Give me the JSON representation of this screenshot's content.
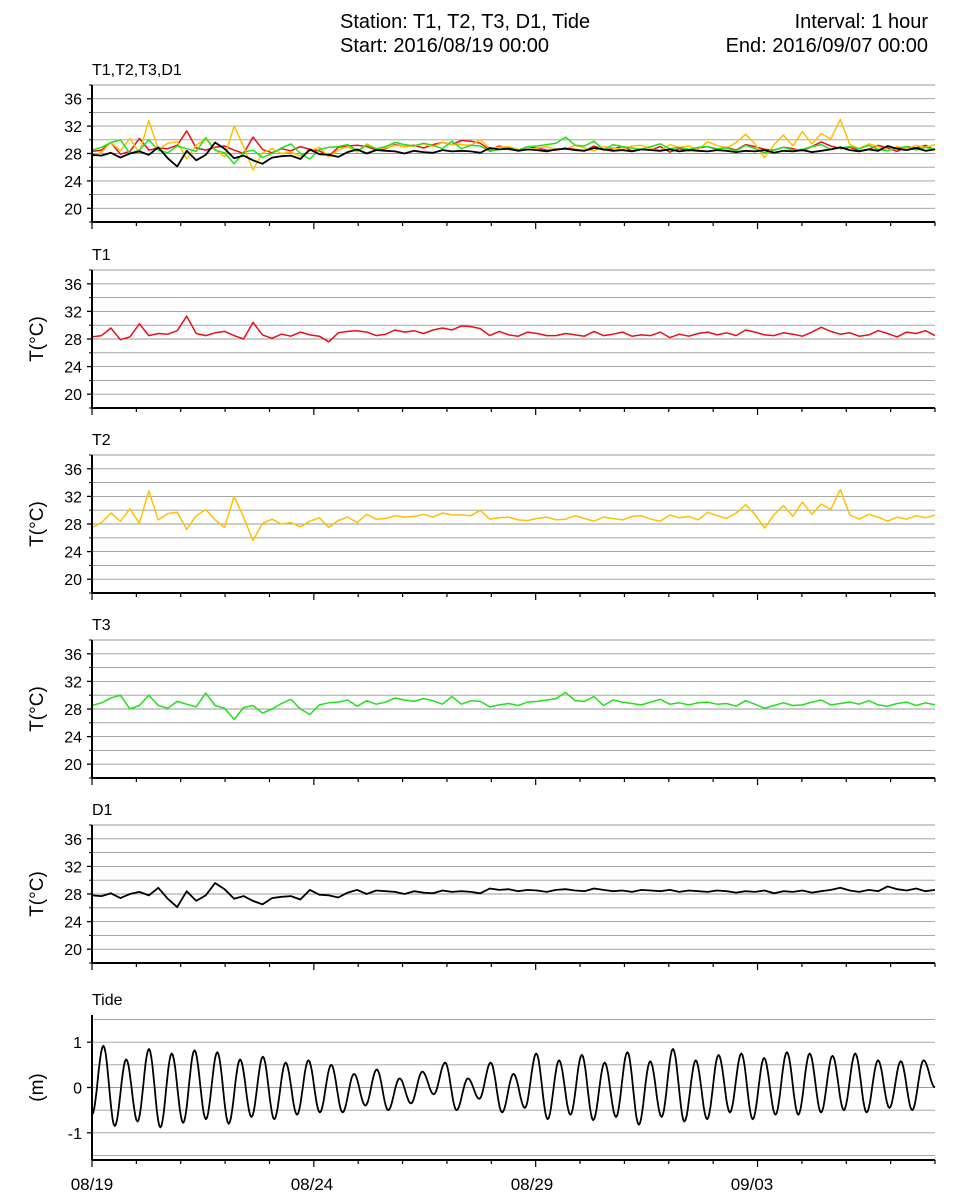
{
  "header": {
    "station": "Station: T1, T2, T3, D1, Tide",
    "start": "Start: 2016/08/19 00:00",
    "interval": "Interval: 1 hour",
    "end": "End: 2016/09/07 00:00"
  },
  "colors": {
    "T1": "#e8101a",
    "T2": "#ffc000",
    "T3": "#22e01c",
    "D1": "#000000",
    "Tide": "#000000",
    "grid": "#9a9a9a"
  },
  "chart_data": {
    "type": "line",
    "x_ticks": [
      "08/19",
      "08/24",
      "08/29",
      "09/03"
    ],
    "xlim": [
      "2016/08/19 00:00",
      "2016/09/07 00:00"
    ],
    "grid": true,
    "panels": [
      {
        "title": "T1,T2,T3,D1",
        "ylabel": "",
        "ylim": [
          18,
          38
        ],
        "yticks": [
          20,
          24,
          28,
          32,
          36
        ],
        "series": [
          {
            "name": "T1",
            "values": [
              28.3,
              28.5,
              29.6,
              27.9,
              28.3,
              30.2,
              28.5,
              28.8,
              28.7,
              29.2,
              31.3,
              28.8,
              28.5,
              28.9,
              29.1,
              28.5,
              28.0,
              30.4,
              28.6,
              28.1,
              28.7,
              28.4,
              29.0,
              28.6,
              28.4,
              27.6,
              28.9,
              29.1,
              29.2,
              29.0,
              28.5,
              28.7,
              29.3,
              29.0,
              29.2,
              28.8,
              29.3,
              29.6,
              29.3,
              29.9,
              29.8,
              29.5,
              28.5,
              29.1,
              28.6,
              28.4,
              29.0,
              28.8,
              28.5,
              28.5,
              28.8,
              28.6,
              28.4,
              29.1,
              28.5,
              28.7,
              29.0,
              28.4,
              28.6,
              28.5,
              29.0,
              28.2,
              28.7,
              28.4,
              28.8,
              29.0,
              28.6,
              28.9,
              28.5,
              29.3,
              29.0,
              28.6,
              28.5,
              28.9,
              28.7,
              28.4,
              29.0,
              29.7,
              29.1,
              28.7,
              28.9,
              28.4,
              28.6,
              29.2,
              28.8,
              28.3,
              29.0,
              28.8,
              29.2,
              28.5
            ]
          },
          {
            "name": "T2",
            "values": [
              27.5,
              28.2,
              29.6,
              28.4,
              30.2,
              28.1,
              32.8,
              28.6,
              29.5,
              29.7,
              27.2,
              29.2,
              30.1,
              28.6,
              27.5,
              32.0,
              29.0,
              25.6,
              28.1,
              28.7,
              28.0,
              28.2,
              27.6,
              28.4,
              28.9,
              27.5,
              28.5,
              29.0,
              28.2,
              29.4,
              28.7,
              28.8,
              29.2,
              29.0,
              29.1,
              29.4,
              29.0,
              29.6,
              29.3,
              29.3,
              29.2,
              30.0,
              28.7,
              28.9,
              29.0,
              28.6,
              28.5,
              28.8,
              29.0,
              28.6,
              28.7,
              29.2,
              28.8,
              28.4,
              29.0,
              28.8,
              28.6,
              29.1,
              29.2,
              28.7,
              28.4,
              29.3,
              28.9,
              29.1,
              28.6,
              29.7,
              29.2,
              28.8,
              29.6,
              30.8,
              29.4,
              27.4,
              29.3,
              30.7,
              29.1,
              31.2,
              29.4,
              30.9,
              30.1,
              33.0,
              29.3,
              28.7,
              29.4,
              29.0,
              28.4,
              29.0,
              28.7,
              29.2,
              28.9,
              29.3
            ]
          },
          {
            "name": "T3",
            "values": [
              28.5,
              28.9,
              29.6,
              30.0,
              28.0,
              28.5,
              30.0,
              28.5,
              28.1,
              29.1,
              28.7,
              28.3,
              30.3,
              28.5,
              28.1,
              26.5,
              28.2,
              28.5,
              27.4,
              28.0,
              28.8,
              29.4,
              28.0,
              27.2,
              28.6,
              28.9,
              29.0,
              29.3,
              28.4,
              29.2,
              28.7,
              29.0,
              29.6,
              29.3,
              29.1,
              29.5,
              29.2,
              28.7,
              29.8,
              28.7,
              29.2,
              29.1,
              28.3,
              28.6,
              28.8,
              28.5,
              29.0,
              29.1,
              29.3,
              29.5,
              30.4,
              29.2,
              29.1,
              29.8,
              28.5,
              29.3,
              29.0,
              28.8,
              28.6,
              29.0,
              29.4,
              28.7,
              28.9,
              28.6,
              28.9,
              29.0,
              28.7,
              28.8,
              28.4,
              29.2,
              28.7,
              28.1,
              28.5,
              28.9,
              28.5,
              28.6,
              29.0,
              29.3,
              28.6,
              28.8,
              29.0,
              28.7,
              29.2,
              28.6,
              28.4,
              28.8,
              29.0,
              28.5,
              28.9,
              28.6
            ]
          },
          {
            "name": "D1",
            "values": [
              27.8,
              27.7,
              28.1,
              27.4,
              28.0,
              28.3,
              27.8,
              28.9,
              27.3,
              26.1,
              28.4,
              27.0,
              27.8,
              29.6,
              28.7,
              27.3,
              27.7,
              27.0,
              26.5,
              27.4,
              27.6,
              27.7,
              27.2,
              28.6,
              27.9,
              27.8,
              27.5,
              28.2,
              28.6,
              28.0,
              28.5,
              28.4,
              28.3,
              28.0,
              28.4,
              28.2,
              28.1,
              28.5,
              28.3,
              28.4,
              28.3,
              28.1,
              28.8,
              28.6,
              28.7,
              28.4,
              28.6,
              28.5,
              28.3,
              28.6,
              28.7,
              28.5,
              28.4,
              28.8,
              28.6,
              28.4,
              28.5,
              28.3,
              28.6,
              28.5,
              28.4,
              28.6,
              28.3,
              28.5,
              28.4,
              28.3,
              28.5,
              28.4,
              28.2,
              28.4,
              28.3,
              28.5,
              28.1,
              28.4,
              28.3,
              28.5,
              28.2,
              28.4,
              28.6,
              28.9,
              28.5,
              28.3,
              28.6,
              28.4,
              29.1,
              28.7,
              28.5,
              28.8,
              28.4,
              28.6
            ]
          }
        ]
      },
      {
        "title": "T1",
        "ylabel": "T(°C)",
        "ylim": [
          18,
          38
        ],
        "yticks": [
          20,
          24,
          28,
          32,
          36
        ],
        "series_ref": "T1"
      },
      {
        "title": "T2",
        "ylabel": "T(°C)",
        "ylim": [
          18,
          38
        ],
        "yticks": [
          20,
          24,
          28,
          32,
          36
        ],
        "series_ref": "T2"
      },
      {
        "title": "T3",
        "ylabel": "T(°C)",
        "ylim": [
          18,
          38
        ],
        "yticks": [
          20,
          24,
          28,
          32,
          36
        ],
        "series_ref": "T3"
      },
      {
        "title": "D1",
        "ylabel": "T(°C)",
        "ylim": [
          18,
          38
        ],
        "yticks": [
          20,
          24,
          28,
          32,
          36
        ],
        "series_ref": "D1"
      },
      {
        "title": "Tide",
        "ylabel": "(m)",
        "ylim": [
          -1.6,
          1.6
        ],
        "yticks": [
          -1,
          0,
          1
        ],
        "series": [
          {
            "name": "Tide",
            "extremes": [
              -0.6,
              0.92,
              -0.85,
              0.62,
              -0.75,
              0.85,
              -0.88,
              0.75,
              -0.78,
              0.82,
              -0.7,
              0.78,
              -0.8,
              0.62,
              -0.65,
              0.68,
              -0.7,
              0.55,
              -0.6,
              0.6,
              -0.55,
              0.5,
              -0.55,
              0.3,
              -0.4,
              0.4,
              -0.5,
              0.2,
              -0.35,
              0.35,
              -0.15,
              0.55,
              -0.5,
              0.2,
              -0.25,
              0.55,
              -0.55,
              0.3,
              -0.45,
              0.75,
              -0.7,
              0.6,
              -0.6,
              0.72,
              -0.72,
              0.55,
              -0.65,
              0.78,
              -0.82,
              0.58,
              -0.65,
              0.85,
              -0.75,
              0.6,
              -0.7,
              0.72,
              -0.55,
              0.75,
              -0.7,
              0.65,
              -0.6,
              0.78,
              -0.6,
              0.75,
              -0.55,
              0.7,
              -0.5,
              0.75,
              -0.55,
              0.6,
              -0.45,
              0.58,
              -0.5,
              0.6,
              0.0
            ]
          }
        ]
      }
    ]
  }
}
